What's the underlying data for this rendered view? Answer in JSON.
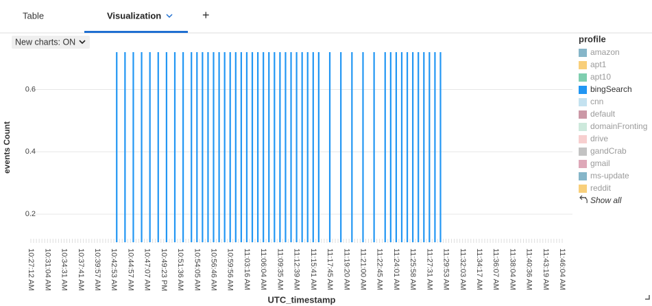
{
  "tabs": [
    "Table",
    "Visualization",
    "+"
  ],
  "toggle": "New charts: ON",
  "chart_data": {
    "type": "bar",
    "x_label": "UTC_timestamp",
    "y_label": "events Count",
    "color": "#2196f3",
    "ylim": [
      0.11,
      0.72
    ],
    "yticks": [
      0.2,
      0.4,
      0.6
    ],
    "grid": true,
    "categories": [
      "10:27:12 AM",
      null,
      null,
      null,
      null,
      null,
      "10:31:04 AM",
      null,
      null,
      null,
      null,
      null,
      "10:34:31 AM",
      null,
      null,
      null,
      null,
      null,
      "10:37:41 AM",
      null,
      null,
      null,
      null,
      null,
      "10:39:57 AM",
      null,
      null,
      null,
      null,
      null,
      "10:42:53 AM",
      null,
      null,
      null,
      null,
      null,
      "10:44:57 AM",
      null,
      null,
      null,
      null,
      null,
      "10:47:07 AM",
      null,
      null,
      null,
      null,
      null,
      "10:49:23 PM",
      null,
      null,
      null,
      null,
      null,
      "10:51:36 AM",
      null,
      null,
      null,
      null,
      null,
      "10:54:05 AM",
      null,
      null,
      null,
      null,
      null,
      "10:56:46 AM",
      null,
      null,
      null,
      null,
      null,
      "10:59:56 AM",
      null,
      null,
      null,
      null,
      null,
      "11:03:16 AM",
      null,
      null,
      null,
      null,
      null,
      "11:06:04 AM",
      null,
      null,
      null,
      null,
      null,
      "11:09:35 AM",
      null,
      null,
      null,
      null,
      null,
      "11:12:39 AM",
      null,
      null,
      null,
      null,
      null,
      "11:15:41 AM",
      null,
      null,
      null,
      null,
      null,
      "11:17:45 AM",
      null,
      null,
      null,
      null,
      null,
      "11:19:20 AM",
      null,
      null,
      null,
      null,
      null,
      "11:21:00 AM",
      null,
      null,
      null,
      null,
      null,
      "11:22:45 AM",
      null,
      null,
      null,
      null,
      null,
      "11:24:01 AM",
      null,
      null,
      null,
      null,
      null,
      "11:25:58 AM",
      null,
      null,
      null,
      null,
      null,
      "11:27:31 AM",
      null,
      null,
      null,
      null,
      null,
      "11:29:53 AM",
      null,
      null,
      null,
      null,
      null,
      "11:32:03 AM",
      null,
      null,
      null,
      null,
      null,
      "11:34:17 AM",
      null,
      null,
      null,
      null,
      null,
      "11:36:07 AM",
      null,
      null,
      null,
      null,
      null,
      "11:38:04 AM",
      null,
      null,
      null,
      null,
      null,
      "11:40:36 AM",
      null,
      null,
      null,
      null,
      null,
      "11:43:19 AM",
      null,
      null,
      null,
      null,
      null,
      "11:46:04 AM"
    ],
    "values": [
      null,
      null,
      null,
      null,
      null,
      null,
      null,
      null,
      null,
      null,
      null,
      null,
      null,
      null,
      null,
      null,
      null,
      null,
      null,
      null,
      null,
      null,
      null,
      null,
      null,
      null,
      null,
      null,
      null,
      null,
      null,
      0.72,
      null,
      null,
      0.72,
      null,
      null,
      0.72,
      null,
      null,
      0.72,
      null,
      null,
      0.72,
      null,
      null,
      0.72,
      null,
      null,
      0.72,
      null,
      null,
      0.72,
      null,
      null,
      0.72,
      null,
      null,
      0.72,
      null,
      0.72,
      null,
      0.72,
      null,
      0.72,
      null,
      0.72,
      null,
      0.72,
      null,
      0.72,
      null,
      0.72,
      null,
      0.72,
      null,
      0.72,
      null,
      0.72,
      null,
      0.72,
      null,
      0.72,
      null,
      0.72,
      null,
      0.72,
      null,
      0.72,
      null,
      0.72,
      null,
      0.72,
      null,
      0.72,
      null,
      0.72,
      null,
      0.72,
      null,
      0.72,
      null,
      0.72,
      null,
      0.72,
      null,
      null,
      null,
      0.72,
      null,
      null,
      null,
      0.72,
      null,
      null,
      null,
      0.72,
      null,
      null,
      null,
      0.72,
      null,
      null,
      null,
      0.72,
      null,
      null,
      null,
      0.72,
      null,
      0.72,
      null,
      0.72,
      null,
      0.72,
      null,
      0.72,
      null,
      0.72,
      null,
      0.72,
      null,
      0.72,
      null,
      0.72,
      null,
      0.72,
      null,
      0.72,
      null,
      null,
      null,
      null,
      null,
      null,
      null,
      null,
      null,
      null,
      null,
      null,
      null,
      null,
      null,
      null,
      null,
      null,
      null,
      null,
      null,
      null,
      null,
      null,
      null,
      null,
      null,
      null,
      null,
      null,
      null,
      null,
      null,
      null,
      null,
      null,
      null,
      null,
      null,
      null,
      null,
      null,
      null,
      null
    ],
    "legend": {
      "title": "profile",
      "show_all": "Show all",
      "items": [
        {
          "name": "amazon",
          "color": "#86b6c9",
          "active": false
        },
        {
          "name": "apt1",
          "color": "#f8cf7b",
          "active": false
        },
        {
          "name": "apt10",
          "color": "#7fceaf",
          "active": false
        },
        {
          "name": "bingSearch",
          "color": "#2196f3",
          "active": true
        },
        {
          "name": "cnn",
          "color": "#c4e2f0",
          "active": false
        },
        {
          "name": "default",
          "color": "#cb98a6",
          "active": false
        },
        {
          "name": "domainFronting",
          "color": "#cde9dc",
          "active": false
        },
        {
          "name": "drive",
          "color": "#f7cfcf",
          "active": false
        },
        {
          "name": "gandCrab",
          "color": "#c3c3c3",
          "active": false
        },
        {
          "name": "gmail",
          "color": "#dea8b8",
          "active": false
        },
        {
          "name": "ms-update",
          "color": "#86b6c9",
          "active": false
        },
        {
          "name": "reddit",
          "color": "#f8cf7b",
          "active": false
        }
      ]
    }
  }
}
